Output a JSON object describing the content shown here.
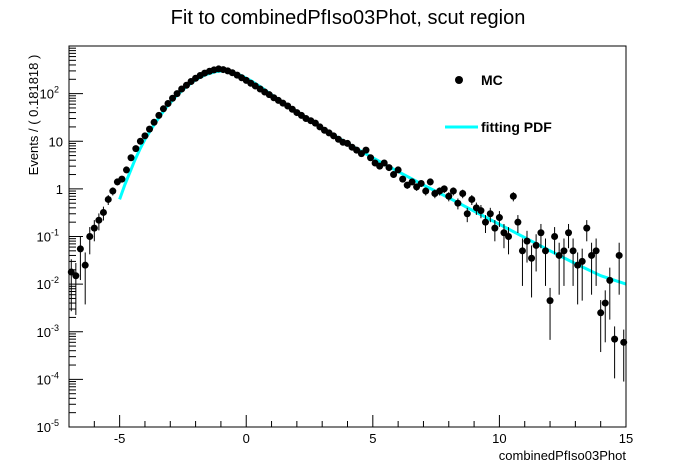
{
  "chart_data": {
    "type": "scatter",
    "title": "Fit to combinedPfIso03Phot, scut region",
    "xlabel": "combinedPfIso03Phot",
    "ylabel": "Events / ( 0.181818 )",
    "xlim": [
      -7,
      15
    ],
    "ylim": [
      1e-05,
      1000
    ],
    "log_y": true,
    "grid": false,
    "legend_position": "top-right",
    "x_ticks": [
      "-5",
      "0",
      "5",
      "10",
      "15"
    ],
    "y_ticks": [
      {
        "base": "10",
        "exp": "-5",
        "value": 1e-05
      },
      {
        "base": "10",
        "exp": "-4",
        "value": 0.0001
      },
      {
        "base": "10",
        "exp": "-3",
        "value": 0.001
      },
      {
        "base": "10",
        "exp": "-2",
        "value": 0.01
      },
      {
        "base": "10",
        "exp": "-1",
        "value": 0.1
      },
      {
        "base": "1",
        "exp": "",
        "value": 1
      },
      {
        "base": "10",
        "exp": "",
        "value": 10
      },
      {
        "base": "10",
        "exp": "2",
        "value": 100
      }
    ],
    "series": [
      {
        "name": "MC",
        "style": "points-with-errorbars",
        "color": "#000000",
        "points": [
          {
            "x": -6.91,
            "y": 0.018
          },
          {
            "x": -6.73,
            "y": 0.015
          },
          {
            "x": -6.55,
            "y": 0.055
          },
          {
            "x": -6.36,
            "y": 0.025
          },
          {
            "x": -6.18,
            "y": 0.1
          },
          {
            "x": -6.0,
            "y": 0.15
          },
          {
            "x": -5.82,
            "y": 0.22
          },
          {
            "x": -5.64,
            "y": 0.32
          },
          {
            "x": -5.45,
            "y": 0.6
          },
          {
            "x": -5.27,
            "y": 0.9
          },
          {
            "x": -5.09,
            "y": 1.4
          },
          {
            "x": -4.91,
            "y": 1.6
          },
          {
            "x": -4.73,
            "y": 2.5
          },
          {
            "x": -4.55,
            "y": 4.5
          },
          {
            "x": -4.36,
            "y": 7.0
          },
          {
            "x": -4.18,
            "y": 10.0
          },
          {
            "x": -4.0,
            "y": 13.0
          },
          {
            "x": -3.82,
            "y": 18.0
          },
          {
            "x": -3.64,
            "y": 25.0
          },
          {
            "x": -3.45,
            "y": 35.0
          },
          {
            "x": -3.27,
            "y": 48.0
          },
          {
            "x": -3.09,
            "y": 62.0
          },
          {
            "x": -2.91,
            "y": 80.0
          },
          {
            "x": -2.73,
            "y": 100.0
          },
          {
            "x": -2.55,
            "y": 125.0
          },
          {
            "x": -2.36,
            "y": 150.0
          },
          {
            "x": -2.18,
            "y": 180.0
          },
          {
            "x": -2.0,
            "y": 210.0
          },
          {
            "x": -1.82,
            "y": 240.0
          },
          {
            "x": -1.64,
            "y": 270.0
          },
          {
            "x": -1.45,
            "y": 295.0
          },
          {
            "x": -1.27,
            "y": 315.0
          },
          {
            "x": -1.09,
            "y": 330.0
          },
          {
            "x": -0.91,
            "y": 320.0
          },
          {
            "x": -0.73,
            "y": 300.0
          },
          {
            "x": -0.55,
            "y": 275.0
          },
          {
            "x": -0.36,
            "y": 245.0
          },
          {
            "x": -0.18,
            "y": 215.0
          },
          {
            "x": 0.0,
            "y": 190.0
          },
          {
            "x": 0.18,
            "y": 165.0
          },
          {
            "x": 0.36,
            "y": 145.0
          },
          {
            "x": 0.55,
            "y": 125.0
          },
          {
            "x": 0.73,
            "y": 108.0
          },
          {
            "x": 0.91,
            "y": 95.0
          },
          {
            "x": 1.09,
            "y": 82.0
          },
          {
            "x": 1.27,
            "y": 72.0
          },
          {
            "x": 1.45,
            "y": 63.0
          },
          {
            "x": 1.64,
            "y": 55.0
          },
          {
            "x": 1.82,
            "y": 47.0
          },
          {
            "x": 2.0,
            "y": 40.0
          },
          {
            "x": 2.18,
            "y": 35.0
          },
          {
            "x": 2.36,
            "y": 30.0
          },
          {
            "x": 2.55,
            "y": 27.0
          },
          {
            "x": 2.73,
            "y": 24.0
          },
          {
            "x": 2.91,
            "y": 20.0
          },
          {
            "x": 3.09,
            "y": 17.0
          },
          {
            "x": 3.27,
            "y": 15.0
          },
          {
            "x": 3.45,
            "y": 13.0
          },
          {
            "x": 3.64,
            "y": 11.0
          },
          {
            "x": 3.82,
            "y": 9.5
          },
          {
            "x": 4.0,
            "y": 9.0
          },
          {
            "x": 4.18,
            "y": 7.5
          },
          {
            "x": 4.36,
            "y": 6.5
          },
          {
            "x": 4.55,
            "y": 5.5
          },
          {
            "x": 4.73,
            "y": 6.5
          },
          {
            "x": 4.91,
            "y": 4.5
          },
          {
            "x": 5.09,
            "y": 3.5
          },
          {
            "x": 5.27,
            "y": 3.0
          },
          {
            "x": 5.45,
            "y": 3.5
          },
          {
            "x": 5.64,
            "y": 2.8
          },
          {
            "x": 5.82,
            "y": 2.0
          },
          {
            "x": 6.0,
            "y": 2.5
          },
          {
            "x": 6.18,
            "y": 1.6
          },
          {
            "x": 6.36,
            "y": 1.2
          },
          {
            "x": 6.55,
            "y": 1.4
          },
          {
            "x": 6.73,
            "y": 1.1
          },
          {
            "x": 6.91,
            "y": 1.3
          },
          {
            "x": 7.09,
            "y": 0.9
          },
          {
            "x": 7.27,
            "y": 1.4
          },
          {
            "x": 7.45,
            "y": 0.8
          },
          {
            "x": 7.64,
            "y": 0.9
          },
          {
            "x": 7.82,
            "y": 1.0
          },
          {
            "x": 8.0,
            "y": 0.7
          },
          {
            "x": 8.18,
            "y": 0.9
          },
          {
            "x": 8.36,
            "y": 0.5
          },
          {
            "x": 8.55,
            "y": 0.8
          },
          {
            "x": 8.73,
            "y": 0.3
          },
          {
            "x": 8.91,
            "y": 0.6
          },
          {
            "x": 9.09,
            "y": 0.4
          },
          {
            "x": 9.27,
            "y": 0.35
          },
          {
            "x": 9.45,
            "y": 0.2
          },
          {
            "x": 9.64,
            "y": 0.3
          },
          {
            "x": 9.82,
            "y": 0.15
          },
          {
            "x": 10.0,
            "y": 0.25
          },
          {
            "x": 10.18,
            "y": 0.12
          },
          {
            "x": 10.36,
            "y": 0.1
          },
          {
            "x": 10.55,
            "y": 0.7
          },
          {
            "x": 10.73,
            "y": 0.2
          },
          {
            "x": 10.91,
            "y": 0.05
          },
          {
            "x": 11.09,
            "y": 0.08
          },
          {
            "x": 11.27,
            "y": 0.035
          },
          {
            "x": 11.45,
            "y": 0.065
          },
          {
            "x": 11.64,
            "y": 0.12
          },
          {
            "x": 11.82,
            "y": 0.05
          },
          {
            "x": 12.0,
            "y": 0.0045
          },
          {
            "x": 12.18,
            "y": 0.1
          },
          {
            "x": 12.36,
            "y": 0.04
          },
          {
            "x": 12.55,
            "y": 0.05
          },
          {
            "x": 12.73,
            "y": 0.12
          },
          {
            "x": 12.91,
            "y": 0.05
          },
          {
            "x": 13.09,
            "y": 0.025
          },
          {
            "x": 13.27,
            "y": 0.03
          },
          {
            "x": 13.45,
            "y": 0.15
          },
          {
            "x": 13.64,
            "y": 0.04
          },
          {
            "x": 13.82,
            "y": 0.05
          },
          {
            "x": 14.0,
            "y": 0.0025
          },
          {
            "x": 14.18,
            "y": 0.004
          },
          {
            "x": 14.36,
            "y": 0.012
          },
          {
            "x": 14.55,
            "y": 0.0007
          },
          {
            "x": 14.73,
            "y": 0.04
          },
          {
            "x": 14.91,
            "y": 0.0006
          }
        ]
      },
      {
        "name": "fitting PDF",
        "style": "line",
        "color": "#00ffff",
        "points": [
          {
            "x": -5.0,
            "y": 0.6
          },
          {
            "x": -4.8,
            "y": 1.2
          },
          {
            "x": -4.6,
            "y": 2.2
          },
          {
            "x": -4.4,
            "y": 4.0
          },
          {
            "x": -4.2,
            "y": 6.8
          },
          {
            "x": -4.0,
            "y": 11.0
          },
          {
            "x": -3.6,
            "y": 24.0
          },
          {
            "x": -3.2,
            "y": 48.0
          },
          {
            "x": -2.8,
            "y": 85.0
          },
          {
            "x": -2.4,
            "y": 135.0
          },
          {
            "x": -2.0,
            "y": 195.0
          },
          {
            "x": -1.6,
            "y": 250.0
          },
          {
            "x": -1.2,
            "y": 290.0
          },
          {
            "x": -0.9,
            "y": 300.0
          },
          {
            "x": -0.6,
            "y": 285.0
          },
          {
            "x": -0.2,
            "y": 240.0
          },
          {
            "x": 0.2,
            "y": 185.0
          },
          {
            "x": 0.6,
            "y": 135.0
          },
          {
            "x": 1.0,
            "y": 95.0
          },
          {
            "x": 1.5,
            "y": 62.0
          },
          {
            "x": 2.0,
            "y": 42.0
          },
          {
            "x": 2.5,
            "y": 28.0
          },
          {
            "x": 3.0,
            "y": 19.0
          },
          {
            "x": 3.5,
            "y": 13.0
          },
          {
            "x": 4.0,
            "y": 9.0
          },
          {
            "x": 5.0,
            "y": 4.5
          },
          {
            "x": 6.0,
            "y": 2.3
          },
          {
            "x": 7.0,
            "y": 1.2
          },
          {
            "x": 8.0,
            "y": 0.65
          },
          {
            "x": 9.0,
            "y": 0.34
          },
          {
            "x": 10.0,
            "y": 0.18
          },
          {
            "x": 11.0,
            "y": 0.095
          },
          {
            "x": 12.0,
            "y": 0.05
          },
          {
            "x": 13.0,
            "y": 0.027
          },
          {
            "x": 14.0,
            "y": 0.015
          },
          {
            "x": 15.0,
            "y": 0.01
          }
        ]
      }
    ]
  },
  "legend": {
    "mc_label": "MC",
    "fit_label": "fitting PDF"
  }
}
